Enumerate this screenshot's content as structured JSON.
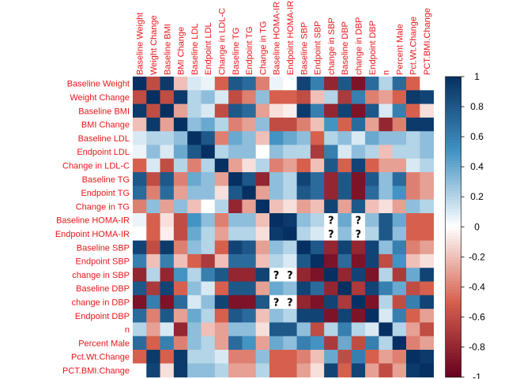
{
  "chart_data": {
    "type": "heatmap",
    "variables": [
      "Baseline Weight",
      "Weight Change",
      "Baseline BMI",
      "BMI Change",
      "Baseline LDL",
      "Endpoint LDL",
      "Change in LDL-C",
      "Baseline TG",
      "Endpoint TG",
      "Change in TG",
      "Baseline HOMA-IR",
      "Endpoint HOMA-IR",
      "Baseline SBP",
      "Endpoint SBP",
      "change in SBP",
      "Baseline DBP",
      "change in DBP",
      "Endpoint DBP",
      "n",
      "Percent Male",
      "Pct.Wt.Change",
      "PCT.BMI.Change"
    ],
    "column_labels": [
      "Baseline Weight",
      "Weight Change",
      "Baseline BMI",
      "BMI Change",
      "Baseline LDL",
      "Endpoint LDL",
      "Change in LDL-C",
      "Baseline TG",
      "Endpoint TG",
      "Change in TG",
      "Baseline HOMA-IR",
      "Endpoint HOMA-IR",
      "Baseline SBP",
      "Endpoint SBP",
      "change in SBP",
      "Baseline DBP",
      "change in DBP",
      "Endpoint DBP",
      "n",
      "Percent Male",
      "Pct.Wt.Change",
      "PCT.BMI.Change"
    ],
    "row_labels": [
      "Baseline Weight",
      "Weight Change",
      "Baseline BMI",
      "BMI Change",
      "Baseline LDL",
      "Endpoint LDL",
      "Change in LDL-C",
      "Baseline TG",
      "Endpoint TG",
      "Change in TG",
      "Baseline HOMA-IR",
      "Endpoint HOMA-IR",
      "Baseline SBP",
      "Endpoint SBP",
      "change in SBP",
      "Baseline DBP",
      "change in DBP",
      "Endpoint DBP",
      "n",
      "Percent Male",
      "Pct.Wt.Change",
      "PCT.BMI.Change"
    ],
    "values": [
      [
        1,
        -0.6,
        0.95,
        -0.2,
        0.1,
        0.05,
        -0.5,
        0.8,
        0.7,
        -0.4,
        0.05,
        0,
        0.9,
        0.6,
        -0.8,
        0.8,
        -0.9,
        0.7,
        0.2,
        0.7,
        -0.5,
        0
      ],
      [
        -0.6,
        1,
        -0.6,
        0.95,
        0.2,
        0.3,
        0.1,
        -0.6,
        -0.4,
        0.3,
        -0.5,
        -0.5,
        -0.6,
        -0.2,
        0.2,
        -0.7,
        0.6,
        -0.4,
        -0.3,
        -0.5,
        0.95,
        0.9
      ],
      [
        0.95,
        -0.6,
        1,
        -0.3,
        0.2,
        0.1,
        -0.6,
        0.8,
        0.7,
        -0.3,
        -0.1,
        -0.05,
        0.95,
        0.6,
        -0.8,
        0.9,
        -0.9,
        0.8,
        0.1,
        0.6,
        -0.5,
        -0.1
      ],
      [
        -0.2,
        0.95,
        -0.3,
        1,
        0.3,
        0.4,
        0.2,
        -0.4,
        -0.3,
        0.3,
        -0.6,
        -0.6,
        -0.4,
        -0.2,
        0.5,
        -0.5,
        0.7,
        -0.3,
        -0.8,
        -0.4,
        0.95,
        0.95
      ],
      [
        0.1,
        0.2,
        0.2,
        0.3,
        1,
        0.8,
        -0.4,
        0.4,
        0.3,
        -0.2,
        0.5,
        0.4,
        0.3,
        -0.5,
        0.2,
        0.3,
        0.1,
        0.4,
        0.3,
        0.3,
        0.2,
        0.3
      ],
      [
        0.05,
        0.3,
        0.1,
        0.4,
        0.8,
        1,
        0.2,
        0.3,
        0.3,
        0,
        0.3,
        0.2,
        0.2,
        -0.7,
        0.6,
        0.1,
        0.3,
        0.2,
        -0.2,
        0.2,
        0.2,
        0.3
      ],
      [
        -0.5,
        0.1,
        -0.6,
        0.2,
        -0.4,
        0.2,
        1,
        -0.3,
        -0.1,
        0.2,
        -0.4,
        -0.3,
        -0.5,
        -0.2,
        0.8,
        -0.5,
        0.9,
        -0.5,
        -0.3,
        -0.3,
        0.1,
        0.2
      ],
      [
        0.8,
        -0.6,
        0.8,
        -0.4,
        0.4,
        0.3,
        -0.3,
        1,
        0.8,
        -0.8,
        0.3,
        0.2,
        0.9,
        0.7,
        -0.8,
        0.8,
        -0.9,
        0.8,
        0.3,
        0.7,
        -0.4,
        -0.3
      ],
      [
        0.7,
        -0.4,
        0.7,
        -0.3,
        0.3,
        0.3,
        -0.1,
        0.8,
        1,
        -0.3,
        0.3,
        0.2,
        0.8,
        0.7,
        -0.8,
        0.8,
        -0.9,
        0.7,
        0.3,
        0.5,
        -0.4,
        -0.3
      ],
      [
        -0.4,
        0.3,
        -0.3,
        0.3,
        -0.2,
        0,
        0.2,
        -0.8,
        -0.3,
        1,
        -0.2,
        -0.1,
        -0.3,
        -0.2,
        0.9,
        -0.3,
        0.8,
        -0.2,
        -0.1,
        -0.3,
        0.3,
        0.2
      ],
      [
        0.05,
        -0.5,
        -0.1,
        -0.6,
        0.5,
        0.3,
        -0.4,
        0.3,
        0.3,
        -0.2,
        1,
        0.95,
        0.3,
        0.2,
        null,
        0.4,
        null,
        0.3,
        0.8,
        0.4,
        -0.5,
        -0.5
      ],
      [
        0,
        -0.5,
        -0.05,
        -0.6,
        0.4,
        0.2,
        -0.3,
        0.2,
        0.2,
        -0.1,
        0.95,
        1,
        0.2,
        0.1,
        null,
        0.3,
        null,
        0.2,
        0.8,
        0.3,
        -0.5,
        -0.5
      ],
      [
        0.9,
        -0.6,
        0.95,
        -0.4,
        0.3,
        0.2,
        -0.5,
        0.9,
        0.8,
        -0.3,
        0.3,
        0.2,
        1,
        0.8,
        -0.8,
        0.9,
        -0.8,
        0.9,
        0.3,
        0.6,
        -0.4,
        -0.3
      ],
      [
        0.6,
        -0.2,
        0.6,
        -0.2,
        -0.5,
        -0.7,
        -0.2,
        0.7,
        0.7,
        -0.2,
        0.2,
        0.1,
        0.8,
        1,
        -0.9,
        0.7,
        -0.9,
        0.9,
        -0.6,
        0.5,
        -0.2,
        -0.1
      ],
      [
        -0.8,
        0.2,
        -0.8,
        0.5,
        0.2,
        0.6,
        0.8,
        -0.8,
        -0.8,
        0.9,
        null,
        null,
        -0.8,
        -0.9,
        1,
        -0.8,
        0.9,
        -0.9,
        0.2,
        -0.7,
        0.4,
        0.9
      ],
      [
        0.8,
        -0.7,
        0.9,
        -0.5,
        0.3,
        0.1,
        -0.5,
        0.8,
        0.8,
        -0.3,
        0.4,
        0.3,
        0.9,
        0.7,
        -0.8,
        1,
        -0.7,
        0.9,
        0.6,
        0.4,
        -0.6,
        -0.5
      ],
      [
        -0.9,
        0.6,
        -0.9,
        0.7,
        0.1,
        0.3,
        0.9,
        -0.9,
        -0.9,
        0.8,
        null,
        null,
        -0.8,
        -0.9,
        0.9,
        -0.7,
        1,
        -0.9,
        0.2,
        -0.6,
        0.6,
        0.9
      ],
      [
        0.7,
        -0.4,
        0.8,
        -0.3,
        0.4,
        0.2,
        -0.5,
        0.8,
        0.7,
        -0.2,
        0.3,
        0.2,
        0.9,
        0.9,
        -0.9,
        0.9,
        -0.9,
        1,
        0.1,
        0.6,
        -0.5,
        -0.3
      ],
      [
        0.2,
        -0.3,
        0.1,
        -0.8,
        0.3,
        -0.2,
        -0.3,
        0.3,
        0.3,
        -0.1,
        0.8,
        0.8,
        0.3,
        -0.6,
        0.2,
        0.6,
        0.2,
        0.1,
        1,
        0.2,
        -0.3,
        -0.6
      ],
      [
        0.7,
        -0.5,
        0.6,
        -0.4,
        0.3,
        0.2,
        -0.3,
        0.7,
        0.5,
        -0.3,
        0.4,
        0.3,
        0.6,
        0.5,
        -0.7,
        0.4,
        -0.6,
        0.6,
        0.2,
        1,
        -0.4,
        -0.3
      ],
      [
        -0.5,
        0.95,
        -0.5,
        0.95,
        0.2,
        0.2,
        0.1,
        -0.4,
        -0.4,
        0.3,
        -0.5,
        -0.5,
        -0.4,
        -0.2,
        0.4,
        -0.6,
        0.6,
        -0.5,
        -0.3,
        -0.4,
        1,
        0.95
      ],
      [
        0,
        0.9,
        -0.1,
        0.95,
        0.3,
        0.3,
        0.2,
        -0.3,
        -0.3,
        0.2,
        -0.5,
        -0.5,
        -0.3,
        -0.1,
        0.9,
        -0.5,
        0.9,
        -0.3,
        -0.6,
        -0.3,
        0.95,
        1
      ]
    ],
    "missing_marker": "?",
    "colorbar": {
      "range": [
        -1,
        1
      ],
      "ticks": [
        "1",
        "0.8",
        "0.6",
        "0.4",
        "0.2",
        "0",
        "-0.2",
        "-0.4",
        "-0.6",
        "-0.8",
        "-1"
      ]
    },
    "colors": {
      "negative": "#67001f",
      "mid_negative": "#d6604d",
      "neutral": "#ffffff",
      "mid_positive": "#4393c3",
      "positive": "#053061"
    }
  }
}
